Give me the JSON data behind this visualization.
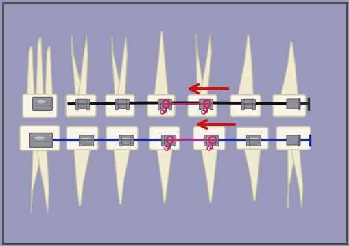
{
  "bg_color": "#9999bb",
  "border_color": "#444444",
  "tooth_fill_light": "#f8f4e8",
  "tooth_fill": "#f0ebd0",
  "tooth_outline": "#c8c4a0",
  "tooth_shadow": "#e0dac0",
  "bracket_color": "#909098",
  "bracket_dark": "#606068",
  "wire_black": "#111111",
  "wire_blue": "#1a2a99",
  "wire_pink": "#cc2266",
  "arrow_red": "#cc1111",
  "figsize": [
    5.1,
    3.6
  ],
  "dpi": 100
}
